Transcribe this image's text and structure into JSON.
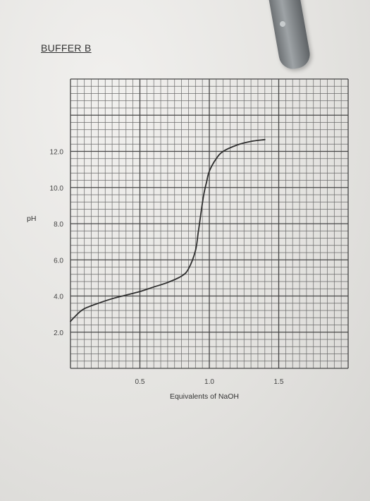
{
  "chart_data": {
    "type": "line",
    "title": "BUFFER B",
    "xlabel": "Equivalents of NaOH",
    "ylabel": "pH",
    "xlim": [
      0,
      2.0
    ],
    "ylim": [
      0,
      16
    ],
    "x_ticks": [
      0.5,
      1.0,
      1.5
    ],
    "x_tick_labels": [
      "0.5",
      "1.0",
      "1.5"
    ],
    "y_ticks": [
      2,
      4,
      6,
      8,
      10,
      12
    ],
    "y_tick_labels": [
      "2.0",
      "4.0",
      "6.0",
      "8.0",
      "10.0",
      "12.0"
    ],
    "grid": true,
    "series": [
      {
        "x": [
          0.0,
          0.05,
          0.1,
          0.2,
          0.3,
          0.4,
          0.5,
          0.6,
          0.7,
          0.8,
          0.85,
          0.9,
          0.92,
          0.94,
          0.96,
          0.98,
          1.0,
          1.05,
          1.1,
          1.2,
          1.3,
          1.4
        ],
        "y": [
          2.6,
          3.0,
          3.3,
          3.6,
          3.85,
          4.05,
          4.25,
          4.5,
          4.75,
          5.1,
          5.5,
          6.5,
          7.5,
          8.6,
          9.6,
          10.3,
          10.9,
          11.6,
          12.0,
          12.35,
          12.55,
          12.65
        ]
      }
    ]
  }
}
